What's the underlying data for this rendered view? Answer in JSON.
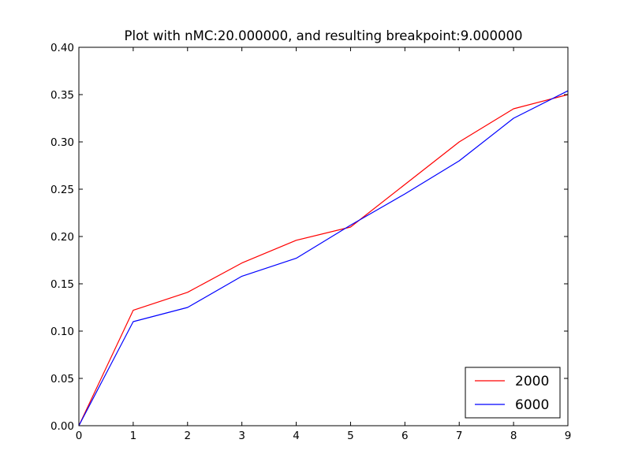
{
  "chart_data": {
    "type": "line",
    "title": "Plot with nMC:20.000000, and resulting breakpoint:9.000000",
    "xlabel": "",
    "ylabel": "",
    "xlim": [
      0,
      9
    ],
    "ylim": [
      0,
      0.4
    ],
    "xticks": [
      0,
      1,
      2,
      3,
      4,
      5,
      6,
      7,
      8,
      9
    ],
    "xtick_labels": [
      "0",
      "1",
      "2",
      "3",
      "4",
      "5",
      "6",
      "7",
      "8",
      "9"
    ],
    "yticks": [
      0,
      0.05,
      0.1,
      0.15,
      0.2,
      0.25,
      0.3,
      0.35,
      0.4
    ],
    "ytick_labels": [
      "0.00",
      "0.05",
      "0.10",
      "0.15",
      "0.20",
      "0.25",
      "0.30",
      "0.35",
      "0.40"
    ],
    "grid": false,
    "legend_position": "bottom-right",
    "x": [
      0,
      1,
      2,
      3,
      4,
      5,
      6,
      7,
      8,
      9
    ],
    "series": [
      {
        "name": "2000",
        "color": "#ff0000",
        "values": [
          0.0,
          0.122,
          0.141,
          0.172,
          0.196,
          0.21,
          0.255,
          0.3,
          0.335,
          0.35
        ]
      },
      {
        "name": "6000",
        "color": "#0000ff",
        "values": [
          0.0,
          0.11,
          0.125,
          0.158,
          0.177,
          0.212,
          0.245,
          0.28,
          0.325,
          0.354
        ]
      }
    ]
  }
}
